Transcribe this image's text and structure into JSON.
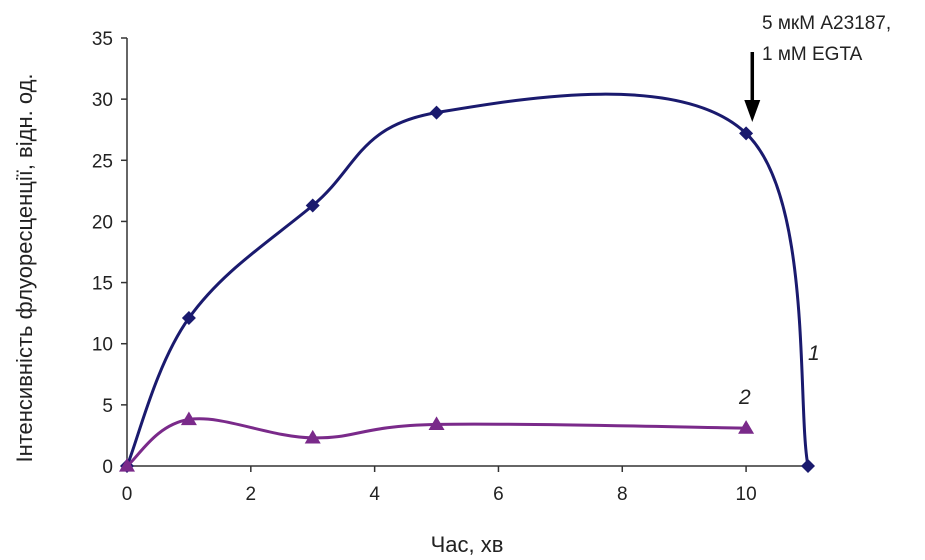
{
  "chart_data": {
    "type": "line",
    "title": "",
    "xlabel": "Час, хв",
    "ylabel": "Інтенсивність флуоресценції, відн. од.",
    "xlim": [
      0,
      11
    ],
    "ylim": [
      0,
      35
    ],
    "xticks": [
      0,
      2,
      4,
      6,
      8,
      10
    ],
    "yticks": [
      0,
      5,
      10,
      15,
      20,
      25,
      30,
      35
    ],
    "grid": false,
    "legend": "none",
    "series": [
      {
        "name": "1",
        "color": "#1a1a6e",
        "marker": "diamond",
        "x": [
          0,
          1,
          3,
          5,
          10,
          11
        ],
        "y": [
          0,
          12.1,
          21.3,
          28.9,
          27.2,
          0
        ]
      },
      {
        "name": "2",
        "color": "#7a2a8a",
        "marker": "triangle",
        "x": [
          0,
          1,
          3,
          5,
          10
        ],
        "y": [
          0,
          3.8,
          2.3,
          3.4,
          3.1
        ]
      }
    ],
    "annotations": [
      {
        "lines": [
          "5 мкМ A23187,",
          "1 мМ EGTA"
        ],
        "arrow_at_x": 10.1
      }
    ]
  }
}
